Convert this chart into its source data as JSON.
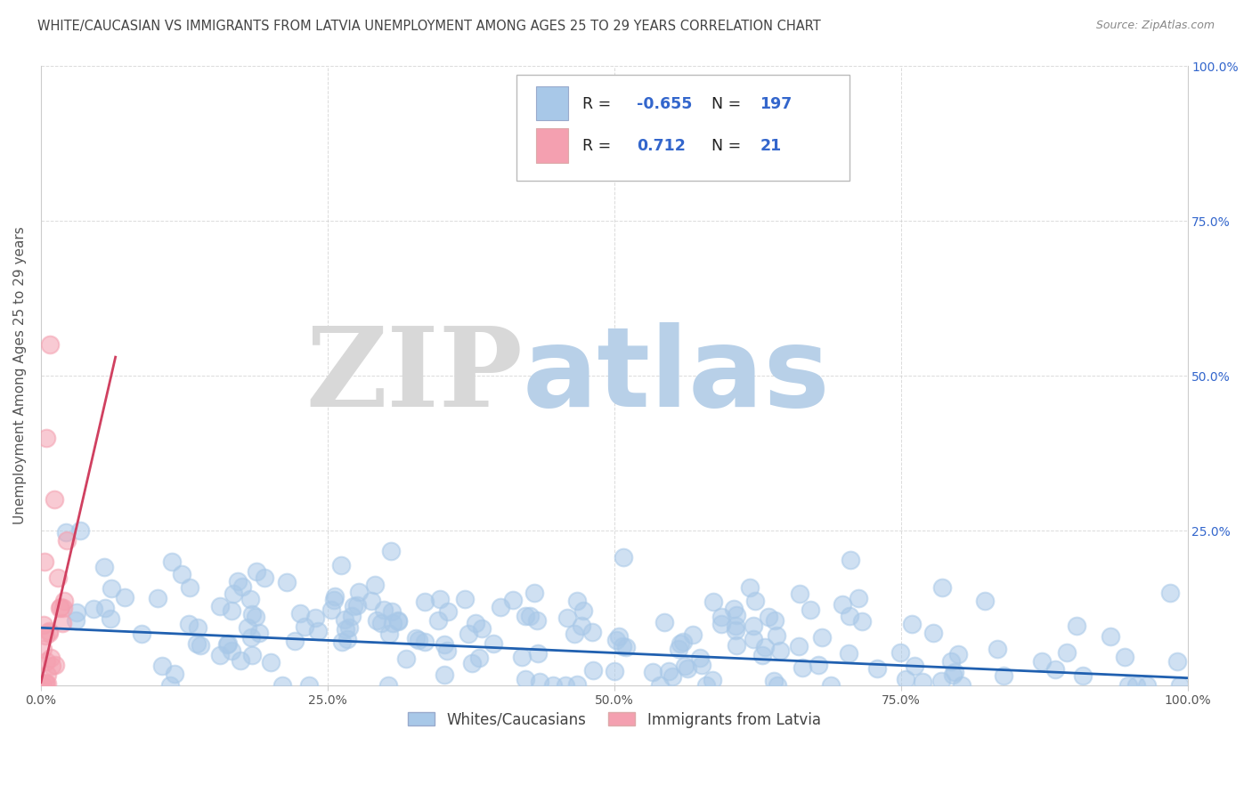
{
  "title": "WHITE/CAUCASIAN VS IMMIGRANTS FROM LATVIA UNEMPLOYMENT AMONG AGES 25 TO 29 YEARS CORRELATION CHART",
  "source": "Source: ZipAtlas.com",
  "ylabel": "Unemployment Among Ages 25 to 29 years",
  "xlim": [
    0.0,
    1.0
  ],
  "ylim": [
    0.0,
    1.0
  ],
  "xticks": [
    0.0,
    0.25,
    0.5,
    0.75,
    1.0
  ],
  "yticks": [
    0.0,
    0.25,
    0.5,
    0.75,
    1.0
  ],
  "ytick_labels_right": [
    "",
    "25.0%",
    "50.0%",
    "75.0%",
    "100.0%"
  ],
  "xtick_labels": [
    "0.0%",
    "25.0%",
    "50.0%",
    "75.0%",
    "100.0%"
  ],
  "blue_R": -0.655,
  "blue_N": 197,
  "pink_R": 0.712,
  "pink_N": 21,
  "blue_scatter_color": "#a8c8e8",
  "blue_line_color": "#2060b0",
  "pink_scatter_color": "#f4a0b0",
  "pink_line_color": "#d04060",
  "legend_label_blue": "Whites/Caucasians",
  "legend_label_pink": "Immigrants from Latvia",
  "background_color": "#ffffff",
  "grid_color": "#cccccc",
  "watermark_ZIP_color": "#d8d8d8",
  "watermark_atlas_color": "#b8d0e8",
  "title_fontsize": 10.5,
  "axis_label_fontsize": 11,
  "legend_R_color": "#3366cc",
  "legend_N_color": "#3366cc"
}
